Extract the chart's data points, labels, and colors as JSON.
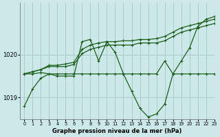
{
  "title": "Graphe pression niveau de la mer (hPa)",
  "bg_color": "#cce8e8",
  "grid_color": "#aacccc",
  "line_color": "#1a5c1a",
  "xlim": [
    -0.5,
    23
  ],
  "ylim": [
    1018.5,
    1021.2
  ],
  "yticks": [
    1019,
    1020
  ],
  "xticks": [
    0,
    1,
    2,
    3,
    4,
    5,
    6,
    7,
    8,
    9,
    10,
    11,
    12,
    13,
    14,
    15,
    16,
    17,
    18,
    19,
    20,
    21,
    22,
    23
  ],
  "curves": [
    [
      1018.8,
      1019.2,
      1019.45,
      1019.55,
      1019.5,
      1019.5,
      1019.5,
      1020.3,
      1020.35,
      1019.85,
      1020.3,
      1020.05,
      1019.55,
      1019.15,
      1018.75,
      1018.55,
      1018.62,
      1018.85,
      1019.55,
      1019.85,
      1020.15,
      1020.65,
      1020.82,
      1020.88
    ],
    [
      1019.55,
      1019.55,
      1019.58,
      1019.55,
      1019.55,
      1019.55,
      1019.55,
      1019.55,
      1019.55,
      1019.55,
      1019.55,
      1019.55,
      1019.55,
      1019.55,
      1019.55,
      1019.55,
      1019.55,
      1019.85,
      1019.55,
      1019.55,
      1019.55,
      1019.55,
      1019.55,
      1019.55
    ],
    [
      1019.55,
      1019.6,
      1019.65,
      1019.75,
      1019.75,
      1019.78,
      1019.82,
      1020.12,
      1020.22,
      1020.27,
      1020.3,
      1020.3,
      1020.32,
      1020.32,
      1020.35,
      1020.35,
      1020.37,
      1020.42,
      1020.52,
      1020.62,
      1020.67,
      1020.72,
      1020.77,
      1020.82
    ],
    [
      1019.55,
      1019.6,
      1019.65,
      1019.72,
      1019.72,
      1019.72,
      1019.77,
      1020.02,
      1020.12,
      1020.17,
      1020.22,
      1020.22,
      1020.22,
      1020.22,
      1020.27,
      1020.27,
      1020.27,
      1020.32,
      1020.42,
      1020.52,
      1020.57,
      1020.62,
      1020.67,
      1020.72
    ]
  ]
}
